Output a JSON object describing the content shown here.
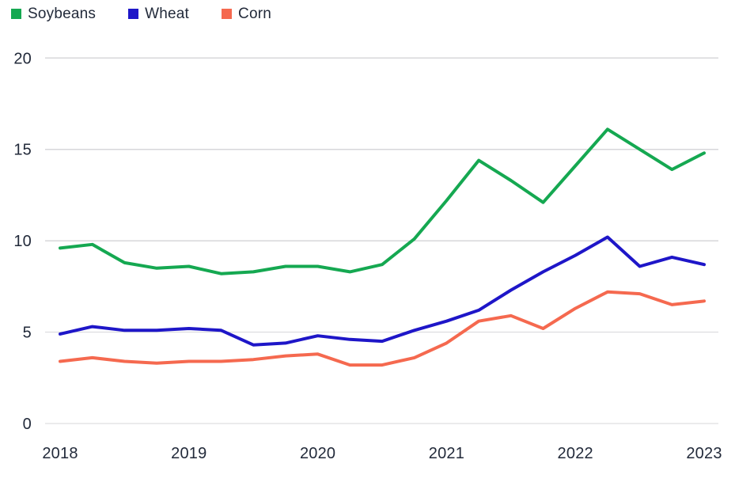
{
  "chart_data": {
    "type": "line",
    "title": "",
    "x_labels": [
      "2018",
      "2019",
      "2020",
      "2021",
      "2022",
      "2023"
    ],
    "x": [
      2018.0,
      2018.25,
      2018.5,
      2018.75,
      2019.0,
      2019.25,
      2019.5,
      2019.75,
      2020.0,
      2020.25,
      2020.5,
      2020.75,
      2021.0,
      2021.25,
      2021.5,
      2021.75,
      2022.0,
      2022.25,
      2022.5,
      2022.75,
      2023.0
    ],
    "series": [
      {
        "name": "Soybeans",
        "color": "#15a851",
        "values": [
          9.6,
          9.8,
          8.8,
          8.5,
          8.6,
          8.2,
          8.3,
          8.6,
          8.6,
          8.3,
          8.7,
          10.1,
          12.2,
          14.4,
          13.3,
          12.1,
          14.1,
          16.1,
          15.0,
          13.9,
          14.8
        ]
      },
      {
        "name": "Wheat",
        "color": "#1e16c8",
        "values": [
          4.9,
          5.3,
          5.1,
          5.1,
          5.2,
          5.1,
          4.3,
          4.4,
          4.8,
          4.6,
          4.5,
          5.1,
          5.6,
          6.2,
          7.3,
          8.3,
          9.2,
          10.2,
          8.6,
          9.1,
          8.7
        ]
      },
      {
        "name": "Corn",
        "color": "#f5694f",
        "values": [
          3.4,
          3.6,
          3.4,
          3.3,
          3.4,
          3.4,
          3.5,
          3.7,
          3.8,
          3.2,
          3.2,
          3.6,
          4.4,
          5.6,
          5.9,
          5.2,
          6.3,
          7.2,
          7.1,
          6.5,
          6.7
        ]
      }
    ],
    "ylim": [
      0,
      20
    ],
    "yticks": [
      0,
      5,
      10,
      15,
      20
    ],
    "grid": "horizontal",
    "gridline_color": "#d7d7da",
    "legend_position": "top-left"
  }
}
